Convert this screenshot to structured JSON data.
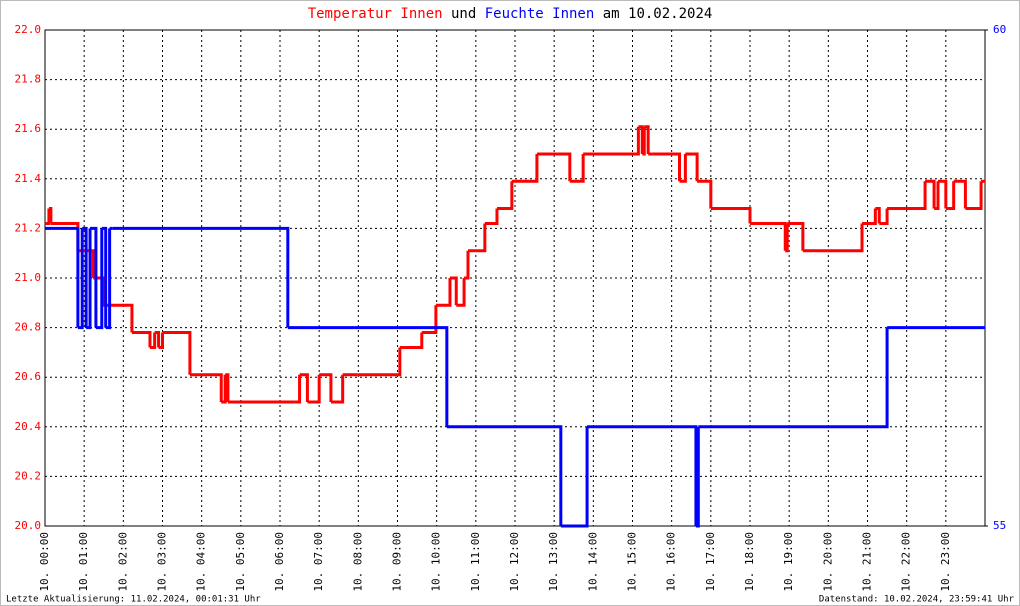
{
  "chart_data": {
    "type": "step-line",
    "title_connector": "und",
    "title_suffix": "am 10.02.2024",
    "xlim": [
      0,
      24
    ],
    "xticks": [
      {
        "value": 0,
        "label": "10. 00:00"
      },
      {
        "value": 1,
        "label": "10. 01:00"
      },
      {
        "value": 2,
        "label": "10. 02:00"
      },
      {
        "value": 3,
        "label": "10. 03:00"
      },
      {
        "value": 4,
        "label": "10. 04:00"
      },
      {
        "value": 5,
        "label": "10. 05:00"
      },
      {
        "value": 6,
        "label": "10. 06:00"
      },
      {
        "value": 7,
        "label": "10. 07:00"
      },
      {
        "value": 8,
        "label": "10. 08:00"
      },
      {
        "value": 9,
        "label": "10. 09:00"
      },
      {
        "value": 10,
        "label": "10. 10:00"
      },
      {
        "value": 11,
        "label": "10. 11:00"
      },
      {
        "value": 12,
        "label": "10. 12:00"
      },
      {
        "value": 13,
        "label": "10. 13:00"
      },
      {
        "value": 14,
        "label": "10. 14:00"
      },
      {
        "value": 15,
        "label": "10. 15:00"
      },
      {
        "value": 16,
        "label": "10. 16:00"
      },
      {
        "value": 17,
        "label": "10. 17:00"
      },
      {
        "value": 18,
        "label": "10. 18:00"
      },
      {
        "value": 19,
        "label": "10. 19:00"
      },
      {
        "value": 20,
        "label": "10. 20:00"
      },
      {
        "value": 21,
        "label": "10. 21:00"
      },
      {
        "value": 22,
        "label": "10. 22:00"
      },
      {
        "value": 23,
        "label": "10. 23:00"
      }
    ],
    "ylim": [
      20,
      22
    ],
    "yticks": [
      {
        "value": 20,
        "label": "20.0"
      },
      20.2,
      20.4,
      20.6,
      20.8,
      {
        "value": 21,
        "label": "21.0"
      },
      21.2,
      21.4,
      21.6,
      21.8,
      {
        "value": 22,
        "label": "22.0"
      }
    ],
    "y2lim": [
      55,
      60
    ],
    "y2ticks": [
      55,
      60
    ],
    "grid": true,
    "series": [
      {
        "name": "Temperatur Innen",
        "color": "#ff0000",
        "x": [
          0,
          0.1,
          0.15,
          0.84,
          1.23,
          1.48,
          2.22,
          2.68,
          2.8,
          2.9,
          3.0,
          3.7,
          4.5,
          4.6,
          4.67,
          6.38,
          6.5,
          6.7,
          7.0,
          7.3,
          7.6,
          7.97,
          9.06,
          9.62,
          9.98,
          10.34,
          10.5,
          10.7,
          10.8,
          11.23,
          11.54,
          11.92,
          12.56,
          13.4,
          13.74,
          15.15,
          15.25,
          15.3,
          15.4,
          15.5,
          16.2,
          16.35,
          16.65,
          17.0,
          18.0,
          18.9,
          18.95,
          19.35,
          19.66,
          20.86,
          21.2,
          21.3,
          21.5,
          22.47,
          22.7,
          22.8,
          23.0,
          23.2,
          23.5,
          23.9,
          24
        ],
        "values": [
          21.22,
          21.28,
          21.22,
          21.11,
          21.0,
          20.89,
          20.78,
          20.72,
          20.78,
          20.72,
          20.78,
          20.61,
          20.5,
          20.61,
          20.5,
          20.5,
          20.61,
          20.5,
          20.61,
          20.5,
          20.61,
          20.61,
          20.72,
          20.78,
          20.89,
          21.0,
          20.89,
          21.0,
          21.11,
          21.22,
          21.28,
          21.39,
          21.5,
          21.39,
          21.5,
          21.61,
          21.5,
          21.61,
          21.5,
          21.5,
          21.39,
          21.5,
          21.39,
          21.28,
          21.22,
          21.11,
          21.22,
          21.11,
          21.11,
          21.22,
          21.28,
          21.22,
          21.28,
          21.39,
          21.28,
          21.39,
          21.28,
          21.39,
          21.28,
          21.39,
          21.39
        ]
      },
      {
        "name": "Feuchte Innen",
        "color": "#0000ff",
        "axis": "y2",
        "x": [
          0,
          0.84,
          0.95,
          1.05,
          1.15,
          1.3,
          1.45,
          1.55,
          1.65,
          1.73,
          6.2,
          10.26,
          13.17,
          13.84,
          16.62,
          16.68,
          21.5,
          24
        ],
        "values": [
          58,
          57,
          58,
          57,
          58,
          57,
          58,
          57,
          58,
          58,
          57,
          56,
          55,
          56,
          55,
          56,
          57,
          57
        ]
      }
    ]
  },
  "footer": {
    "left": "Letzte Aktualisierung: 11.02.2024, 00:01:31 Uhr",
    "right": "Datenstand: 10.02.2024, 23:59:41 Uhr"
  }
}
